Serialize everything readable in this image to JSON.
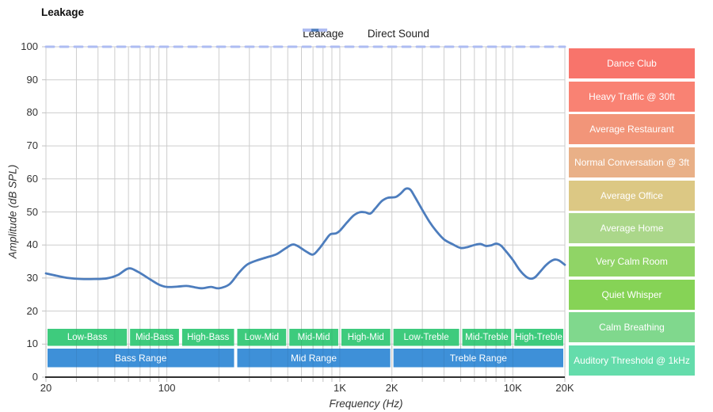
{
  "title": "Leakage",
  "legend": {
    "items": [
      {
        "label": "Leakage",
        "style": "solid",
        "color": "#4d7dbd"
      },
      {
        "label": "Direct Sound",
        "style": "dashed",
        "color": "#aebcf2"
      }
    ]
  },
  "axes": {
    "y_label": "Amplitude (dB SPL)",
    "x_label": "Frequency (Hz)",
    "y_ticks": [
      0,
      10,
      20,
      30,
      40,
      50,
      60,
      70,
      80,
      90,
      100
    ],
    "x_tick_labels": [
      {
        "f": 20,
        "label": "20"
      },
      {
        "f": 100,
        "label": "100"
      },
      {
        "f": 1000,
        "label": "1K"
      },
      {
        "f": 2000,
        "label": "2K"
      },
      {
        "f": 10000,
        "label": "10K"
      },
      {
        "f": 20000,
        "label": "20K"
      }
    ],
    "x_gridlines": [
      20,
      30,
      40,
      50,
      60,
      70,
      80,
      90,
      100,
      200,
      300,
      400,
      500,
      600,
      700,
      800,
      900,
      1000,
      2000,
      3000,
      4000,
      5000,
      6000,
      7000,
      8000,
      9000,
      10000,
      20000
    ]
  },
  "chart_data": {
    "type": "line",
    "title": "Leakage",
    "xlabel": "Frequency (Hz)",
    "ylabel": "Amplitude (dB SPL)",
    "x_scale": "log",
    "xlim": [
      20,
      20000
    ],
    "ylim": [
      0,
      100
    ],
    "grid": true,
    "legend_position": "top",
    "series": [
      {
        "name": "Leakage",
        "color": "#4d7dbd",
        "style": "solid",
        "points": [
          [
            20,
            31.4
          ],
          [
            23,
            30.7
          ],
          [
            27,
            30.0
          ],
          [
            32,
            29.7
          ],
          [
            38,
            29.7
          ],
          [
            45,
            29.9
          ],
          [
            52,
            30.9
          ],
          [
            60,
            32.9
          ],
          [
            68,
            31.9
          ],
          [
            80,
            29.6
          ],
          [
            90,
            28.0
          ],
          [
            100,
            27.3
          ],
          [
            115,
            27.4
          ],
          [
            130,
            27.6
          ],
          [
            145,
            27.2
          ],
          [
            160,
            26.9
          ],
          [
            180,
            27.3
          ],
          [
            200,
            26.9
          ],
          [
            230,
            28.1
          ],
          [
            260,
            31.5
          ],
          [
            290,
            34.0
          ],
          [
            330,
            35.3
          ],
          [
            380,
            36.3
          ],
          [
            430,
            37.2
          ],
          [
            480,
            38.8
          ],
          [
            530,
            40.1
          ],
          [
            570,
            39.7
          ],
          [
            640,
            38.0
          ],
          [
            700,
            37.1
          ],
          [
            760,
            38.9
          ],
          [
            820,
            41.2
          ],
          [
            880,
            43.2
          ],
          [
            950,
            43.5
          ],
          [
            1000,
            44.3
          ],
          [
            1100,
            46.8
          ],
          [
            1200,
            48.9
          ],
          [
            1300,
            49.9
          ],
          [
            1400,
            49.9
          ],
          [
            1500,
            49.5
          ],
          [
            1600,
            51.0
          ],
          [
            1750,
            53.3
          ],
          [
            1900,
            54.3
          ],
          [
            2100,
            54.5
          ],
          [
            2250,
            55.6
          ],
          [
            2400,
            57.0
          ],
          [
            2550,
            56.8
          ],
          [
            2700,
            54.8
          ],
          [
            3000,
            50.6
          ],
          [
            3300,
            47.0
          ],
          [
            3600,
            44.3
          ],
          [
            4000,
            41.7
          ],
          [
            4500,
            40.2
          ],
          [
            5000,
            39.1
          ],
          [
            5500,
            39.4
          ],
          [
            6000,
            40.0
          ],
          [
            6500,
            40.3
          ],
          [
            7000,
            39.7
          ],
          [
            7500,
            39.9
          ],
          [
            8000,
            40.4
          ],
          [
            8500,
            39.9
          ],
          [
            9000,
            38.5
          ],
          [
            10000,
            35.5
          ],
          [
            11000,
            32.3
          ],
          [
            12000,
            30.3
          ],
          [
            12800,
            29.8
          ],
          [
            13500,
            30.3
          ],
          [
            14500,
            32.1
          ],
          [
            15500,
            33.8
          ],
          [
            16500,
            35.0
          ],
          [
            17500,
            35.6
          ],
          [
            18500,
            35.3
          ],
          [
            20000,
            34.0
          ]
        ]
      },
      {
        "name": "Direct Sound",
        "color": "#aebcf2",
        "style": "dashed",
        "points": [
          [
            20,
            100
          ],
          [
            20000,
            100
          ]
        ]
      }
    ]
  },
  "bands": {
    "sub_color": "#3ecb7d",
    "main_color": "#3e90d8",
    "sub": [
      {
        "label": "Low-Bass",
        "f": [
          20,
          60
        ]
      },
      {
        "label": "Mid-Bass",
        "f": [
          60,
          120
        ]
      },
      {
        "label": "High-Bass",
        "f": [
          120,
          250
        ]
      },
      {
        "label": "Low-Mid",
        "f": [
          250,
          500
        ]
      },
      {
        "label": "Mid-Mid",
        "f": [
          500,
          1000
        ]
      },
      {
        "label": "High-Mid",
        "f": [
          1000,
          2000
        ]
      },
      {
        "label": "Low-Treble",
        "f": [
          2000,
          5000
        ]
      },
      {
        "label": "Mid-Treble",
        "f": [
          5000,
          10000
        ]
      },
      {
        "label": "High-Treble",
        "f": [
          10000,
          20000
        ]
      }
    ],
    "main": [
      {
        "label": "Bass Range",
        "f": [
          20,
          250
        ]
      },
      {
        "label": "Mid Range",
        "f": [
          250,
          2000
        ]
      },
      {
        "label": "Treble Range",
        "f": [
          2000,
          20000
        ]
      }
    ]
  },
  "noise_levels": {
    "items": [
      {
        "label": "Dance Club",
        "color": "#f8746b"
      },
      {
        "label": "Heavy Traffic @ 30ft",
        "color": "#f98273"
      },
      {
        "label": "Average Restaurant",
        "color": "#f29579"
      },
      {
        "label": "Normal Conversation @ 3ft",
        "color": "#e9b087"
      },
      {
        "label": "Average Office",
        "color": "#dcc884"
      },
      {
        "label": "Average Home",
        "color": "#abd78a"
      },
      {
        "label": "Very Calm Room",
        "color": "#90d466"
      },
      {
        "label": "Quiet Whisper",
        "color": "#86d356"
      },
      {
        "label": "Calm Breathing",
        "color": "#80d88d"
      },
      {
        "label": "Auditory Threshold @ 1kHz",
        "color": "#64dcab"
      }
    ]
  },
  "colors": {
    "grid": "#cdcdcd",
    "tick": "#c2c2c2",
    "axis": "#303030"
  }
}
